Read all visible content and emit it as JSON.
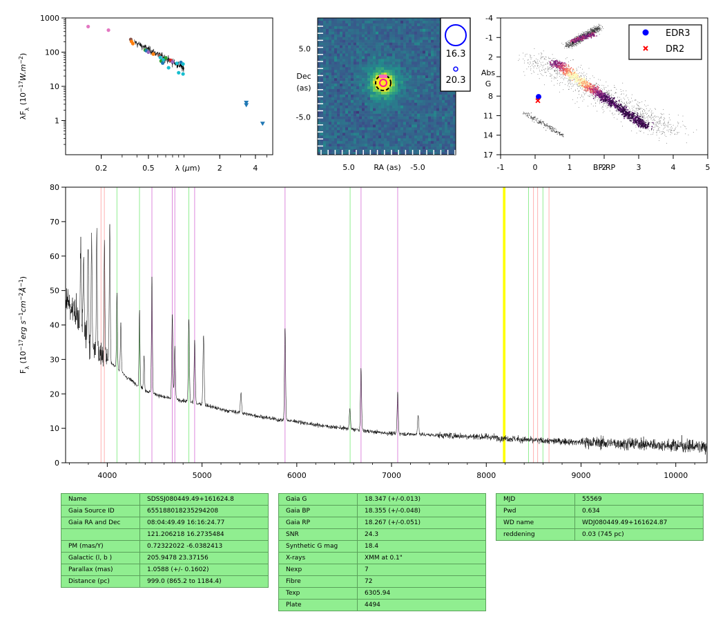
{
  "chart_data": [
    {
      "type": "scatter",
      "id": "sed",
      "ylabel": "λF_λ (10^-17 W.m^-2)",
      "xlabel": "λ (μm)",
      "xscale": "log",
      "yscale": "log",
      "xlim": [
        0.1,
        5.6
      ],
      "ylim": [
        0.1,
        1000
      ],
      "xticks": [
        0.2,
        0.5,
        2,
        4
      ],
      "yticks": [
        1,
        10,
        100,
        1000
      ],
      "xlabel_at": 1.0,
      "points": [
        {
          "x": 0.155,
          "y": 560,
          "color": "#e377c2",
          "shape": "circle"
        },
        {
          "x": 0.23,
          "y": 440,
          "color": "#e377c2",
          "shape": "circle"
        },
        {
          "x": 0.355,
          "y": 235,
          "color": "#8c564b",
          "shape": "circle"
        },
        {
          "x": 0.36,
          "y": 205,
          "color": "#ff7f0e",
          "shape": "circle"
        },
        {
          "x": 0.37,
          "y": 178,
          "color": "#ff7f0e",
          "shape": "circle"
        },
        {
          "x": 0.47,
          "y": 115,
          "color": "#2ca02c",
          "shape": "circle"
        },
        {
          "x": 0.48,
          "y": 110,
          "color": "#1f77b4",
          "shape": "circle"
        },
        {
          "x": 0.5,
          "y": 100,
          "color": "#9467bd",
          "shape": "circle"
        },
        {
          "x": 0.55,
          "y": 88,
          "color": "#ff7f0e",
          "shape": "circle"
        },
        {
          "x": 0.62,
          "y": 80,
          "color": "#8c564b",
          "shape": "circle"
        },
        {
          "x": 0.63,
          "y": 70,
          "color": "#17becf",
          "shape": "circle"
        },
        {
          "x": 0.64,
          "y": 55,
          "color": "#2ca02c",
          "shape": "circle"
        },
        {
          "x": 0.66,
          "y": 48,
          "color": "#1f77b4",
          "shape": "circle"
        },
        {
          "x": 0.67,
          "y": 60,
          "color": "#17becf",
          "shape": "circle"
        },
        {
          "x": 0.7,
          "y": 68,
          "color": "#2ca02c",
          "shape": "circle"
        },
        {
          "x": 0.74,
          "y": 35,
          "color": "#17becf",
          "shape": "circle"
        },
        {
          "x": 0.77,
          "y": 58,
          "color": "#d62728",
          "shape": "circle"
        },
        {
          "x": 0.8,
          "y": 52,
          "color": "#9467bd",
          "shape": "circle"
        },
        {
          "x": 0.87,
          "y": 47,
          "color": "#17becf",
          "shape": "circle"
        },
        {
          "x": 0.9,
          "y": 25,
          "color": "#17becf",
          "shape": "circle"
        },
        {
          "x": 0.94,
          "y": 50,
          "color": "#1f77b4",
          "shape": "circle"
        },
        {
          "x": 0.98,
          "y": 23,
          "color": "#17becf",
          "shape": "circle"
        },
        {
          "x": 0.98,
          "y": 45,
          "color": "#17becf",
          "shape": "circle"
        },
        {
          "x": 3.35,
          "y": 3.3,
          "color": "#1f77b4",
          "shape": "triangle"
        },
        {
          "x": 3.35,
          "y": 2.8,
          "color": "#1f77b4",
          "shape": "triangle"
        },
        {
          "x": 4.6,
          "y": 0.8,
          "color": "#1f77b4",
          "shape": "triangle"
        }
      ],
      "spectrum_range": [
        0.38,
        1.0
      ],
      "spectrum_y_start": 200,
      "spectrum_y_end": 35
    },
    {
      "type": "heatmap",
      "id": "image",
      "xlabel": "RA (as)",
      "ylabel": "Dec (as)",
      "xlim": [
        9.5,
        -10.5
      ],
      "ylim": [
        -10.5,
        9.5
      ],
      "xticks": [
        5.0,
        -5.0
      ],
      "yticks": [
        5.0,
        -5.0
      ],
      "source_position": [
        0,
        0
      ],
      "legend_g_mags": [
        "16.3",
        "20.3"
      ],
      "source_ring_color": "#ff1493",
      "aperture_color": "#000000"
    },
    {
      "type": "scatter",
      "id": "hrd",
      "xlabel": "BP-RP",
      "ylabel": "Abs G",
      "xlim": [
        -1,
        5
      ],
      "ylim": [
        17,
        -4
      ],
      "xticks": [
        -1,
        0,
        1,
        2,
        3,
        4,
        5
      ],
      "yticks": [
        -4,
        -1,
        2,
        5,
        8,
        11,
        14,
        17
      ],
      "series": [
        {
          "name": "EDR3",
          "x": 0.1,
          "y": 8.1,
          "color": "#0000ff",
          "marker": "circle"
        },
        {
          "name": "DR2",
          "x": 0.08,
          "y": 8.7,
          "color": "#ff0000",
          "marker": "x"
        }
      ],
      "legend_position": "top-right"
    },
    {
      "type": "line",
      "id": "spectrum",
      "ylabel": "F_λ (10^-17 erg s^-1 cm^-2 Å^-1)",
      "xlim": [
        3560,
        10330
      ],
      "ylim": [
        0,
        80
      ],
      "xticks": [
        4000,
        5000,
        6000,
        7000,
        8000,
        9000,
        10000
      ],
      "yticks": [
        0,
        10,
        20,
        30,
        40,
        50,
        60,
        70,
        80
      ],
      "continuum": [
        [
          3560,
          48
        ],
        [
          3700,
          42
        ],
        [
          3800,
          36
        ],
        [
          3900,
          32
        ],
        [
          4000,
          30
        ],
        [
          4200,
          25
        ],
        [
          4400,
          21
        ],
        [
          4600,
          19
        ],
        [
          4800,
          18
        ],
        [
          5000,
          17
        ],
        [
          5200,
          15.5
        ],
        [
          5400,
          14.5
        ],
        [
          5600,
          13.5
        ],
        [
          5800,
          12.5
        ],
        [
          6000,
          12
        ],
        [
          6200,
          11
        ],
        [
          6500,
          10
        ],
        [
          6800,
          9
        ],
        [
          7000,
          8.5
        ],
        [
          7500,
          8
        ],
        [
          8000,
          7.5
        ],
        [
          8500,
          6.5
        ],
        [
          9000,
          6
        ],
        [
          9500,
          5.5
        ],
        [
          10000,
          5
        ],
        [
          10330,
          4.5
        ]
      ],
      "emission_lines": [
        {
          "w": 3720,
          "h": 22
        },
        {
          "w": 3750,
          "h": 20
        },
        {
          "w": 3798,
          "h": 28
        },
        {
          "w": 3835,
          "h": 30
        },
        {
          "w": 3889,
          "h": 34
        },
        {
          "w": 3970,
          "h": 34
        },
        {
          "w": 4026,
          "h": 40
        },
        {
          "w": 4102,
          "h": 22
        },
        {
          "w": 4143,
          "h": 14
        },
        {
          "w": 4340,
          "h": 22
        },
        {
          "w": 4388,
          "h": 10
        },
        {
          "w": 4471,
          "h": 34
        },
        {
          "w": 4686,
          "h": 24
        },
        {
          "w": 4713,
          "h": 15
        },
        {
          "w": 4861,
          "h": 24
        },
        {
          "w": 4922,
          "h": 18
        },
        {
          "w": 5016,
          "h": 20
        },
        {
          "w": 5411,
          "h": 6
        },
        {
          "w": 5876,
          "h": 27
        },
        {
          "w": 6678,
          "h": 18
        },
        {
          "w": 6560,
          "h": 6
        },
        {
          "w": 7065,
          "h": 12
        },
        {
          "w": 7281,
          "h": 6
        }
      ],
      "vlines": [
        {
          "w": 3934,
          "color": "#ffb0b0"
        },
        {
          "w": 3969,
          "color": "#ffb0b0"
        },
        {
          "w": 4102,
          "color": "#90ee90"
        },
        {
          "w": 4340,
          "color": "#90ee90"
        },
        {
          "w": 4471,
          "color": "#dd88dd"
        },
        {
          "w": 4686,
          "color": "#dd88dd"
        },
        {
          "w": 4713,
          "color": "#dd88dd"
        },
        {
          "w": 4861,
          "color": "#90ee90"
        },
        {
          "w": 4922,
          "color": "#dd88dd"
        },
        {
          "w": 5876,
          "color": "#dd88dd"
        },
        {
          "w": 6563,
          "color": "#90ee90"
        },
        {
          "w": 6678,
          "color": "#dd88dd"
        },
        {
          "w": 7065,
          "color": "#dd88dd"
        },
        {
          "w": 8183,
          "color": "#ffff00"
        },
        {
          "w": 8195,
          "color": "#ffff00"
        },
        {
          "w": 8446,
          "color": "#90ee90"
        },
        {
          "w": 8498,
          "color": "#ffb0b0"
        },
        {
          "w": 8542,
          "color": "#ffb0b0"
        },
        {
          "w": 8598,
          "color": "#90ee90"
        },
        {
          "w": 8662,
          "color": "#ffb0b0"
        }
      ]
    }
  ],
  "tables": {
    "identity": [
      [
        "Name",
        "SDSSJ080449.49+161624.8"
      ],
      [
        "Gaia Source ID",
        "655188018235294208"
      ],
      [
        "Gaia RA and Dec",
        "08:04:49.49    16:16:24.77"
      ],
      [
        "",
        "121.206218    16.2735484"
      ],
      [
        "PM (mas/Y)",
        "0.72322022    -6.0382413"
      ],
      [
        "Galactic (l, b )",
        "205.9478    23.37156"
      ],
      [
        "Parallax (mas)",
        "1.0588 (+/- 0.1602)"
      ],
      [
        "Distance (pc)",
        "999.0 (865.2 to 1184.4)"
      ]
    ],
    "photometry": [
      [
        "Gaia G",
        "18.347 (+/-0.013)"
      ],
      [
        "Gaia BP",
        "18.355 (+/-0.048)"
      ],
      [
        "Gaia RP",
        "18.267 (+/-0.051)"
      ],
      [
        "SNR",
        "24.3"
      ],
      [
        "Synthetic G mag",
        "18.4"
      ],
      [
        "X-rays",
        "XMM at 0.1\""
      ],
      [
        "Nexp",
        "7"
      ],
      [
        "Fibre",
        "72"
      ],
      [
        "Texp",
        "6305.94"
      ],
      [
        "Plate",
        "4494"
      ]
    ],
    "observation": [
      [
        "MJD",
        "55569"
      ],
      [
        "Pwd",
        "0.634"
      ],
      [
        "WD name",
        "WDJ080449.49+161624.87"
      ],
      [
        "reddening",
        "0.03 (745 pc)"
      ]
    ]
  }
}
